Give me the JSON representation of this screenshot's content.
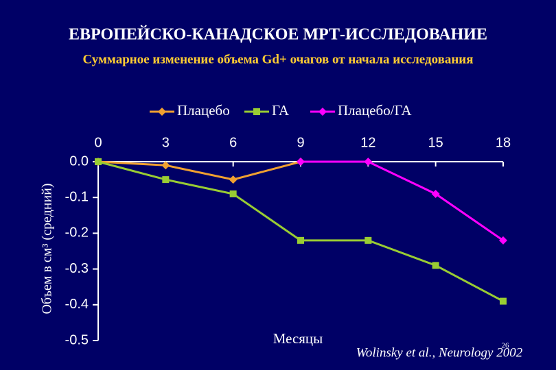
{
  "chart_data": {
    "type": "line",
    "title": "ЕВРОПЕЙСКО-КАНАДСКОЕ МРТ-ИССЛЕДОВАНИЕ",
    "subtitle": "Суммарное изменение объема Gd+ очагов от начала исследования",
    "x_label": "Месяцы",
    "y_label": "Объем в см³ (средний)",
    "citation": "Wolinsky et al., Neurology 2002",
    "page_number": "26",
    "x": [
      0,
      3,
      6,
      9,
      12,
      15,
      18
    ],
    "xlim": [
      0,
      18
    ],
    "xticks": [
      0,
      3,
      6,
      9,
      12,
      15,
      18
    ],
    "ylim": [
      -0.5,
      0
    ],
    "yticks": [
      {
        "value": 0,
        "label": "0.0"
      },
      -0.1,
      -0.2,
      -0.3,
      -0.4,
      -0.5
    ],
    "series": [
      {
        "name": "Плацебо",
        "color": "#f0a030",
        "marker": "diamond",
        "values": [
          0,
          -0.01,
          -0.05,
          0,
          null,
          null,
          null
        ]
      },
      {
        "name": "ГА",
        "color": "#99cc33",
        "marker": "square",
        "values": [
          0,
          -0.05,
          -0.09,
          -0.22,
          -0.22,
          -0.29,
          -0.39
        ]
      },
      {
        "name": "Плацебо/ГА",
        "color": "#ff00ff",
        "marker": "diamond",
        "values": [
          null,
          null,
          null,
          0,
          0,
          -0.09,
          -0.22
        ]
      }
    ]
  }
}
